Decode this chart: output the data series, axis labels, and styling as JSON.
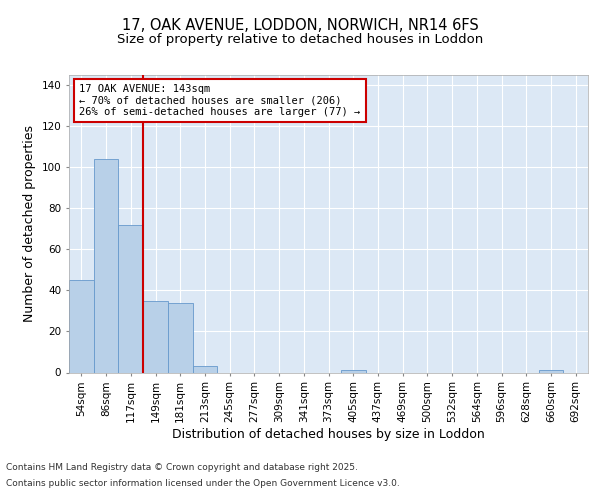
{
  "title_line1": "17, OAK AVENUE, LODDON, NORWICH, NR14 6FS",
  "title_line2": "Size of property relative to detached houses in Loddon",
  "xlabel": "Distribution of detached houses by size in Loddon",
  "ylabel": "Number of detached properties",
  "categories": [
    "54sqm",
    "86sqm",
    "117sqm",
    "149sqm",
    "181sqm",
    "213sqm",
    "245sqm",
    "277sqm",
    "309sqm",
    "341sqm",
    "373sqm",
    "405sqm",
    "437sqm",
    "469sqm",
    "500sqm",
    "532sqm",
    "564sqm",
    "596sqm",
    "628sqm",
    "660sqm",
    "692sqm"
  ],
  "values": [
    45,
    104,
    72,
    35,
    34,
    3,
    0,
    0,
    0,
    0,
    0,
    1,
    0,
    0,
    0,
    0,
    0,
    0,
    0,
    1,
    0
  ],
  "bar_color": "#b8d0e8",
  "bar_edge_color": "#6699cc",
  "vline_x_index": 3,
  "vline_color": "#cc0000",
  "annotation_text": "17 OAK AVENUE: 143sqm\n← 70% of detached houses are smaller (206)\n26% of semi-detached houses are larger (77) →",
  "annotation_box_color": "#cc0000",
  "ylim": [
    0,
    145
  ],
  "yticks": [
    0,
    20,
    40,
    60,
    80,
    100,
    120,
    140
  ],
  "bg_color": "#ffffff",
  "plot_bg_color": "#dce8f5",
  "grid_color": "#ffffff",
  "footer_line1": "Contains HM Land Registry data © Crown copyright and database right 2025.",
  "footer_line2": "Contains public sector information licensed under the Open Government Licence v3.0.",
  "title_fontsize": 10.5,
  "subtitle_fontsize": 9.5,
  "tick_fontsize": 7.5,
  "label_fontsize": 9,
  "footer_fontsize": 6.5,
  "annot_fontsize": 7.5
}
